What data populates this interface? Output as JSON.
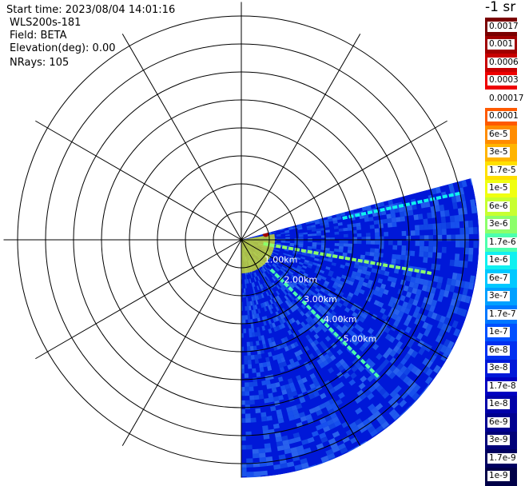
{
  "header": {
    "start_time": "Start time: 2023/08/04 14:01:16",
    "instrument": "WLS200s-181",
    "field": "Field: BETA",
    "elevation": "Elevation(deg): 0.00",
    "nrays": "NRays: 105"
  },
  "colorbar": {
    "unit_label": "-1 sr",
    "ticks": [
      "0.0017",
      "0.001",
      "0.0006",
      "0.0003",
      "0.00017",
      "0.0001",
      "6e-5",
      "3e-5",
      "1.7e-5",
      "1e-5",
      "6e-6",
      "3e-6",
      "1.7e-6",
      "1e-6",
      "6e-7",
      "3e-7",
      "1.7e-7",
      "1e-7",
      "6e-8",
      "3e-8",
      "1.7e-8",
      "1e-8",
      "6e-9",
      "3e-9",
      "1.7e-9",
      "1e-9"
    ],
    "colors": [
      "#7a0000",
      "#a00000",
      "#c80000",
      "#ee0000",
      "#ffffff",
      "#ff5a00",
      "#ff8c00",
      "#ffb400",
      "#ffe000",
      "#f0ff10",
      "#c8ff30",
      "#8cff6a",
      "#4cffae",
      "#10f0f0",
      "#00c8ff",
      "#00a0ff",
      "#0078ff",
      "#0050ff",
      "#0030f0",
      "#0018d8",
      "#0000c0",
      "#0000a8",
      "#000090",
      "#000078",
      "#000060",
      "#000048"
    ]
  },
  "chart_data": {
    "type": "heatmap",
    "projection": "polar PPI scan",
    "field": "BETA",
    "elevation_deg": 0.0,
    "nrays": 105,
    "range_rings_km": [
      1.0,
      2.0,
      3.0,
      4.0,
      5.0
    ],
    "range_ring_labels": [
      "1.00km",
      "2.00km",
      "3.00km",
      "4.00km",
      "5.00km"
    ],
    "azimuth_spokes_deg": [
      0,
      30,
      60,
      90,
      120,
      150,
      180,
      210,
      240,
      270,
      300,
      330
    ],
    "scan_sector_azimuth_deg": [
      75,
      180
    ],
    "max_range_km": 8.5,
    "color_scale": "log",
    "value_range": [
      1e-09,
      0.0017
    ],
    "typical_background_value": 3e-08,
    "features": [
      {
        "label": "near-range high backscatter band",
        "range_km": [
          0.05,
          1.2
        ],
        "azimuth_deg": [
          80,
          180
        ],
        "approx_value": 1e-05
      },
      {
        "label": "strong target",
        "azimuth_deg": 76,
        "range_km": 0.9,
        "approx_value": 0.001
      },
      {
        "label": "linear echo",
        "azimuth_deg": 78,
        "range_km": [
          3.7,
          8.0
        ],
        "approx_value": 1e-06
      },
      {
        "label": "linear echo",
        "azimuth_deg": 100,
        "range_km": [
          0.8,
          6.9
        ],
        "approx_value": 3e-06
      },
      {
        "label": "linear echo",
        "azimuth_deg": 135,
        "range_km": [
          1.5,
          7.0
        ],
        "approx_value": 1.7e-06
      }
    ]
  }
}
